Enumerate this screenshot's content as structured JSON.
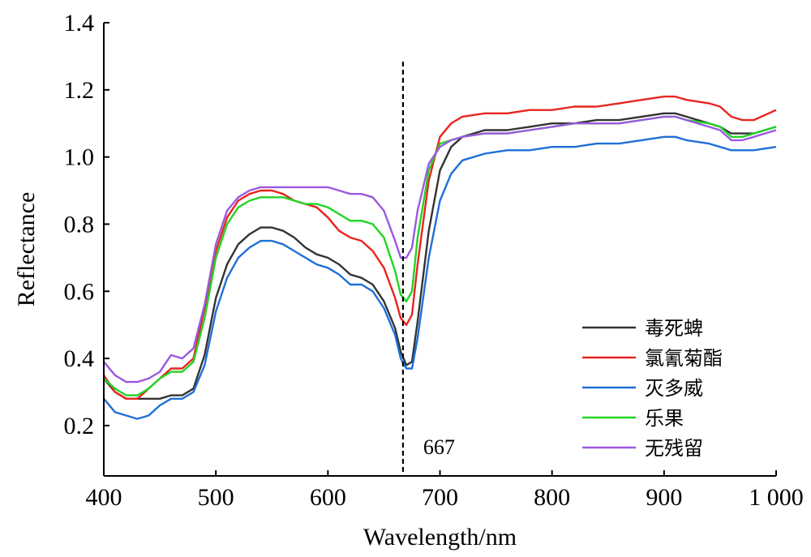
{
  "chart_data": {
    "type": "line",
    "title": "",
    "xlabel": "Wavelength/nm",
    "ylabel": "Reflectance",
    "xlim": [
      400,
      1000
    ],
    "ylim": [
      0.05,
      1.4
    ],
    "x_ticks": [
      400,
      500,
      600,
      700,
      800,
      900,
      1000
    ],
    "x_tick_labels": [
      "400",
      "500",
      "600",
      "700",
      "800",
      "900",
      "1 000"
    ],
    "y_ticks": [
      0.2,
      0.4,
      0.6,
      0.8,
      1.0,
      1.2,
      1.4
    ],
    "y_tick_labels": [
      "0.2",
      "0.4",
      "0.6",
      "0.8",
      "1.0",
      "1.2",
      "1.4"
    ],
    "grid": false,
    "legend_position": "bottom-right",
    "x": [
      400,
      410,
      420,
      430,
      440,
      450,
      460,
      470,
      480,
      490,
      500,
      510,
      520,
      530,
      540,
      550,
      560,
      570,
      580,
      590,
      600,
      610,
      620,
      630,
      640,
      650,
      660,
      665,
      670,
      675,
      680,
      690,
      700,
      710,
      720,
      740,
      760,
      780,
      800,
      820,
      840,
      860,
      880,
      900,
      910,
      920,
      940,
      950,
      960,
      970,
      980,
      1000
    ],
    "series": [
      {
        "name": "毒死蜱",
        "color": "#333333",
        "values": [
          0.34,
          0.3,
          0.28,
          0.28,
          0.28,
          0.28,
          0.29,
          0.29,
          0.31,
          0.41,
          0.58,
          0.68,
          0.74,
          0.77,
          0.79,
          0.79,
          0.78,
          0.76,
          0.73,
          0.71,
          0.7,
          0.68,
          0.65,
          0.64,
          0.62,
          0.57,
          0.49,
          0.42,
          0.38,
          0.39,
          0.51,
          0.78,
          0.96,
          1.03,
          1.06,
          1.08,
          1.08,
          1.09,
          1.1,
          1.1,
          1.11,
          1.11,
          1.12,
          1.13,
          1.13,
          1.12,
          1.1,
          1.09,
          1.07,
          1.07,
          1.07,
          1.09
        ]
      },
      {
        "name": "氯氰菊酯",
        "color": "#e8251f",
        "values": [
          0.35,
          0.3,
          0.28,
          0.28,
          0.31,
          0.34,
          0.37,
          0.37,
          0.4,
          0.55,
          0.72,
          0.82,
          0.87,
          0.89,
          0.9,
          0.9,
          0.89,
          0.87,
          0.86,
          0.85,
          0.82,
          0.78,
          0.76,
          0.75,
          0.72,
          0.67,
          0.58,
          0.52,
          0.5,
          0.53,
          0.68,
          0.93,
          1.06,
          1.1,
          1.12,
          1.13,
          1.13,
          1.14,
          1.14,
          1.15,
          1.15,
          1.16,
          1.17,
          1.18,
          1.18,
          1.17,
          1.16,
          1.15,
          1.12,
          1.11,
          1.11,
          1.14
        ]
      },
      {
        "name": "灭多威",
        "color": "#1f6fd6",
        "values": [
          0.28,
          0.24,
          0.23,
          0.22,
          0.23,
          0.26,
          0.28,
          0.28,
          0.3,
          0.38,
          0.54,
          0.64,
          0.7,
          0.73,
          0.75,
          0.75,
          0.74,
          0.72,
          0.7,
          0.68,
          0.67,
          0.65,
          0.62,
          0.62,
          0.6,
          0.55,
          0.47,
          0.4,
          0.37,
          0.37,
          0.46,
          0.7,
          0.87,
          0.95,
          0.99,
          1.01,
          1.02,
          1.02,
          1.03,
          1.03,
          1.04,
          1.04,
          1.05,
          1.06,
          1.06,
          1.05,
          1.04,
          1.03,
          1.02,
          1.02,
          1.02,
          1.03
        ]
      },
      {
        "name": "乐果",
        "color": "#22d422",
        "values": [
          0.34,
          0.31,
          0.29,
          0.29,
          0.31,
          0.34,
          0.36,
          0.36,
          0.39,
          0.52,
          0.7,
          0.8,
          0.85,
          0.87,
          0.88,
          0.88,
          0.88,
          0.87,
          0.86,
          0.86,
          0.85,
          0.83,
          0.81,
          0.81,
          0.8,
          0.76,
          0.66,
          0.59,
          0.57,
          0.6,
          0.76,
          0.96,
          1.04,
          1.05,
          1.06,
          1.07,
          1.07,
          1.08,
          1.09,
          1.1,
          1.1,
          1.1,
          1.11,
          1.12,
          1.12,
          1.11,
          1.1,
          1.09,
          1.06,
          1.06,
          1.07,
          1.09
        ]
      },
      {
        "name": "无残留",
        "color": "#9b59e0",
        "values": [
          0.39,
          0.35,
          0.33,
          0.33,
          0.34,
          0.36,
          0.41,
          0.4,
          0.43,
          0.56,
          0.74,
          0.84,
          0.88,
          0.9,
          0.91,
          0.91,
          0.91,
          0.91,
          0.91,
          0.91,
          0.91,
          0.9,
          0.89,
          0.89,
          0.88,
          0.84,
          0.75,
          0.7,
          0.7,
          0.73,
          0.84,
          0.98,
          1.03,
          1.05,
          1.06,
          1.07,
          1.07,
          1.08,
          1.09,
          1.1,
          1.1,
          1.1,
          1.11,
          1.12,
          1.12,
          1.11,
          1.09,
          1.08,
          1.05,
          1.05,
          1.06,
          1.08
        ]
      }
    ],
    "annotations": [
      {
        "type": "vertical-dashed-line",
        "x": 667,
        "label": "667"
      }
    ]
  }
}
